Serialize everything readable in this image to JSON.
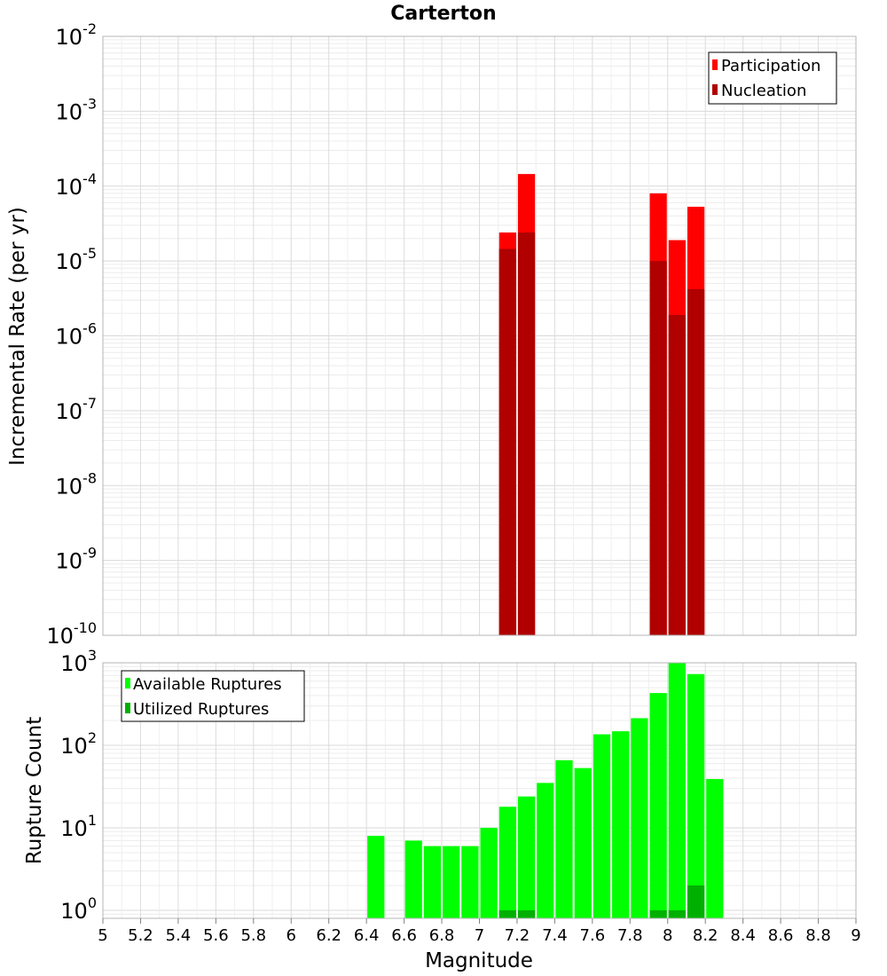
{
  "chart_data": [
    {
      "type": "bar",
      "title": "Carterton",
      "xlabel": "",
      "ylabel": "Incremental Rate (per yr)",
      "yscale": "log",
      "ylim": [
        1e-10,
        0.01
      ],
      "xlim": [
        5,
        9
      ],
      "bar_width": 0.1,
      "grid": true,
      "legend_position": "top-right",
      "ytick_labels": [
        {
          "base": "10",
          "exp": "-10"
        },
        {
          "base": "10",
          "exp": "-9"
        },
        {
          "base": "10",
          "exp": "-8"
        },
        {
          "base": "10",
          "exp": "-7"
        },
        {
          "base": "10",
          "exp": "-6"
        },
        {
          "base": "10",
          "exp": "-5"
        },
        {
          "base": "10",
          "exp": "-4"
        },
        {
          "base": "10",
          "exp": "-3"
        },
        {
          "base": "10",
          "exp": "-2"
        }
      ],
      "series": [
        {
          "name": "Participation",
          "color": "#ff0000",
          "points": [
            {
              "x": 7.15,
              "y": 2.4e-05
            },
            {
              "x": 7.25,
              "y": 0.000145
            },
            {
              "x": 7.95,
              "y": 8e-05
            },
            {
              "x": 8.05,
              "y": 1.9e-05
            },
            {
              "x": 8.15,
              "y": 5.3e-05
            }
          ]
        },
        {
          "name": "Nucleation",
          "color": "#b00000",
          "points": [
            {
              "x": 7.15,
              "y": 1.45e-05
            },
            {
              "x": 7.25,
              "y": 2.4e-05
            },
            {
              "x": 7.95,
              "y": 1e-05
            },
            {
              "x": 8.05,
              "y": 1.9e-06
            },
            {
              "x": 8.15,
              "y": 4.2e-06
            }
          ]
        }
      ]
    },
    {
      "type": "bar",
      "title": "",
      "xlabel": "Magnitude",
      "ylabel": "Rupture Count",
      "yscale": "log",
      "ylim": [
        0.8,
        1000
      ],
      "xlim": [
        5,
        9
      ],
      "bar_width": 0.1,
      "grid": true,
      "legend_position": "top-left",
      "xtick_labels": [
        "5",
        "5.2",
        "5.4",
        "5.6",
        "5.8",
        "6",
        "6.2",
        "6.4",
        "6.6",
        "6.8",
        "7",
        "7.2",
        "7.4",
        "7.6",
        "7.8",
        "8",
        "8.2",
        "8.4",
        "8.6",
        "8.8",
        "9"
      ],
      "ytick_labels": [
        {
          "base": "10",
          "exp": "0"
        },
        {
          "base": "10",
          "exp": "1"
        },
        {
          "base": "10",
          "exp": "2"
        },
        {
          "base": "10",
          "exp": "3"
        }
      ],
      "series": [
        {
          "name": "Available Ruptures",
          "color": "#00ff00",
          "points": [
            {
              "x": 6.45,
              "y": 8
            },
            {
              "x": 6.65,
              "y": 7
            },
            {
              "x": 6.75,
              "y": 6
            },
            {
              "x": 6.85,
              "y": 6
            },
            {
              "x": 6.95,
              "y": 6
            },
            {
              "x": 7.05,
              "y": 10
            },
            {
              "x": 7.15,
              "y": 18
            },
            {
              "x": 7.25,
              "y": 24
            },
            {
              "x": 7.35,
              "y": 35
            },
            {
              "x": 7.45,
              "y": 66
            },
            {
              "x": 7.55,
              "y": 53
            },
            {
              "x": 7.65,
              "y": 136
            },
            {
              "x": 7.75,
              "y": 148
            },
            {
              "x": 7.85,
              "y": 213
            },
            {
              "x": 7.95,
              "y": 430
            },
            {
              "x": 8.05,
              "y": 1000
            },
            {
              "x": 8.15,
              "y": 730
            },
            {
              "x": 8.25,
              "y": 39
            }
          ]
        },
        {
          "name": "Utilized Ruptures",
          "color": "#00b000",
          "points": [
            {
              "x": 7.15,
              "y": 1
            },
            {
              "x": 7.25,
              "y": 1
            },
            {
              "x": 7.95,
              "y": 1
            },
            {
              "x": 8.05,
              "y": 1
            },
            {
              "x": 8.15,
              "y": 2
            }
          ]
        }
      ]
    }
  ]
}
